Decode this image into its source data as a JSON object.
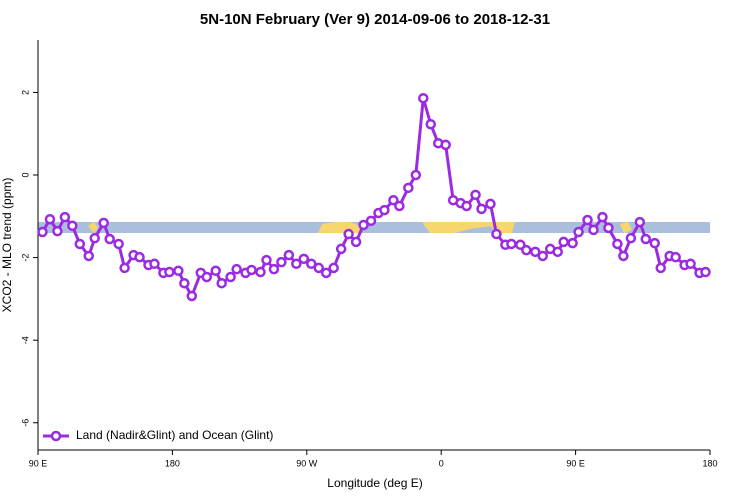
{
  "chart_data": {
    "type": "line",
    "title": "5N-10N February (Ver 9)   2014-09-06 to 2018-12-31",
    "x_label": "Longitude (deg E)",
    "y_label": "XCO2 - MLO trend (ppm)",
    "x": [
      93,
      98,
      103,
      108,
      113,
      118,
      124,
      128,
      134,
      138,
      144,
      148,
      154,
      158,
      164,
      168,
      174,
      178,
      184,
      188,
      193,
      199,
      203,
      209,
      213,
      219,
      223,
      229,
      233,
      239,
      243,
      248,
      253,
      258,
      263,
      268,
      273,
      278,
      283,
      288,
      293,
      298,
      303,
      308,
      313,
      318,
      322,
      328,
      332,
      338,
      343,
      348,
      353,
      358,
      363,
      368,
      373,
      377,
      383,
      387,
      393,
      397,
      403,
      407,
      413,
      417,
      423,
      428,
      433,
      438,
      442,
      448,
      452,
      458,
      462,
      468,
      472,
      478,
      482,
      487,
      493,
      497,
      503,
      507,
      513,
      517,
      523,
      527,
      533,
      537
    ],
    "series": [
      {
        "name": "Land (Nadir&Glint) and Ocean (Glint)",
        "color": "#9a2be2",
        "values": [
          -1.38,
          -1.07,
          -1.36,
          -1.02,
          -1.23,
          -1.67,
          -1.96,
          -1.53,
          -1.16,
          -1.55,
          -1.67,
          -2.25,
          -1.94,
          -1.99,
          -2.18,
          -2.15,
          -2.37,
          -2.35,
          -2.32,
          -2.62,
          -2.93,
          -2.37,
          -2.47,
          -2.32,
          -2.62,
          -2.47,
          -2.28,
          -2.37,
          -2.3,
          -2.35,
          -2.06,
          -2.28,
          -2.11,
          -1.94,
          -2.15,
          -2.03,
          -2.15,
          -2.25,
          -2.37,
          -2.25,
          -1.79,
          -1.43,
          -1.62,
          -1.21,
          -1.11,
          -0.92,
          -0.85,
          -0.61,
          -0.75,
          -0.31,
          0.0,
          1.86,
          1.23,
          0.77,
          0.73,
          -0.61,
          -0.68,
          -0.75,
          -0.48,
          -0.82,
          -0.7,
          -1.43,
          -1.69,
          -1.67,
          -1.69,
          -1.82,
          -1.86,
          -1.96,
          -1.79,
          -1.86,
          -1.62,
          -1.65,
          -1.38,
          -1.09,
          -1.33,
          -1.02,
          -1.28,
          -1.67,
          -1.96,
          -1.53,
          -1.14,
          -1.55,
          -1.65,
          -2.25,
          -1.96,
          -1.99,
          -2.18,
          -2.15,
          -2.37,
          -2.35
        ]
      }
    ],
    "xlim": [
      90,
      540
    ],
    "xticks": [
      {
        "value": 90,
        "label": "90 E"
      },
      {
        "value": 180,
        "label": "180"
      },
      {
        "value": 270,
        "label": "90 W"
      },
      {
        "value": 360,
        "label": "0"
      },
      {
        "value": 450,
        "label": "90 E"
      },
      {
        "value": 540,
        "label": "180"
      }
    ],
    "ylim": [
      -6.66,
      3.27
    ],
    "yticks": [
      2,
      0,
      -2,
      -4,
      -6
    ],
    "legend": "lower left"
  }
}
